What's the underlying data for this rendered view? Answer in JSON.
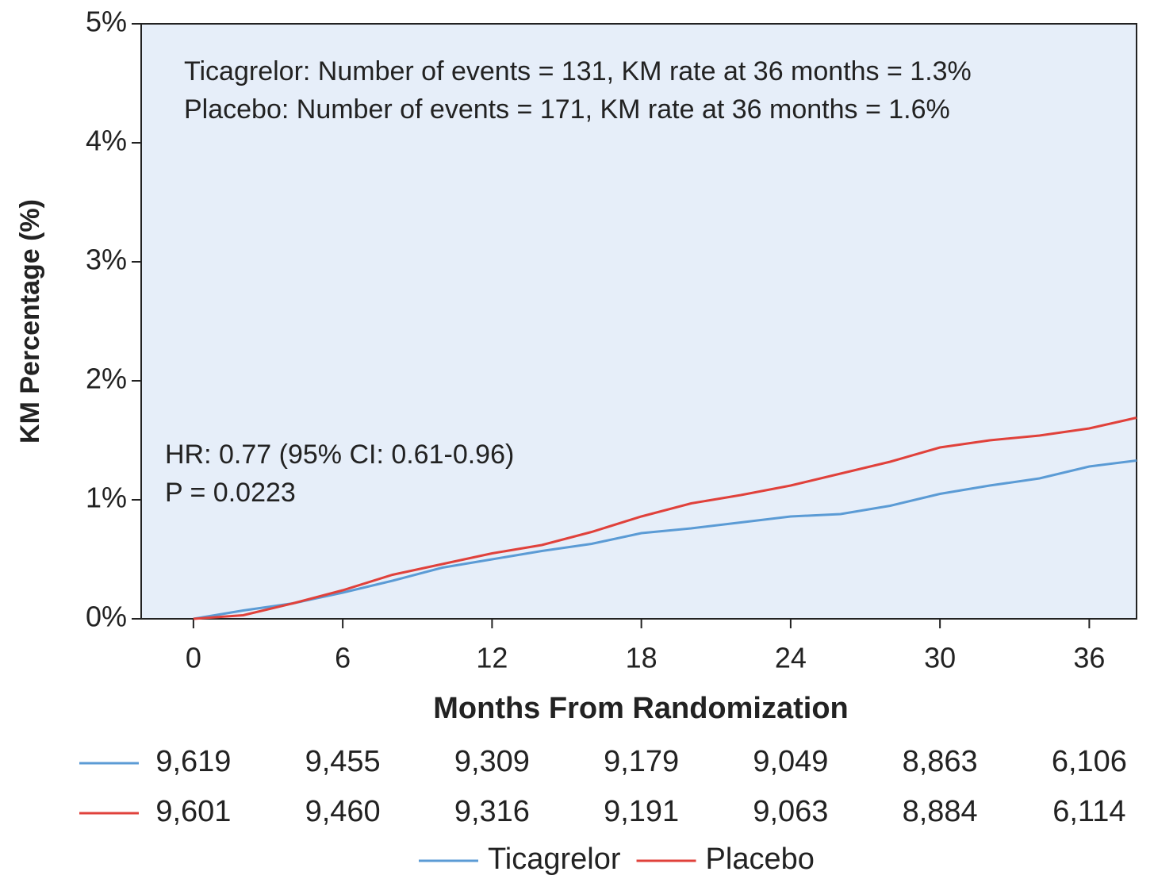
{
  "chart_data": {
    "type": "line",
    "y_label": "KM Percentage (%)",
    "x_label": "Months From Randomization",
    "annotations": [
      "Ticagrelor: Number of events = 131, KM rate at 36 months = 1.3%",
      "Placebo: Number of events = 171, KM rate at 36 months = 1.6%",
      "HR: 0.77 (95% CI: 0.61-0.96)",
      "P = 0.0223"
    ],
    "x": [
      0,
      2,
      4,
      6,
      8,
      10,
      12,
      14,
      16,
      18,
      20,
      22,
      24,
      26,
      28,
      30,
      32,
      34,
      36,
      37.9
    ],
    "series": [
      {
        "name": "Ticagrelor",
        "color": "#5b9bd5",
        "values": [
          0,
          0.07,
          0.13,
          0.22,
          0.32,
          0.43,
          0.5,
          0.57,
          0.63,
          0.72,
          0.76,
          0.81,
          0.86,
          0.88,
          0.95,
          1.05,
          1.12,
          1.18,
          1.28,
          1.33
        ]
      },
      {
        "name": "Placebo",
        "color": "#e0413b",
        "values": [
          0,
          0.03,
          0.13,
          0.24,
          0.37,
          0.46,
          0.55,
          0.62,
          0.73,
          0.86,
          0.97,
          1.04,
          1.12,
          1.22,
          1.32,
          1.44,
          1.5,
          1.54,
          1.6,
          1.69
        ]
      }
    ],
    "xlim": [
      -2.1,
      37.9
    ],
    "xticks": [
      0,
      6,
      12,
      18,
      24,
      30,
      36
    ],
    "ylim": [
      0,
      5
    ],
    "yticks": [
      {
        "value": 0,
        "label": "0%"
      },
      {
        "value": 1,
        "label": "1%"
      },
      {
        "value": 2,
        "label": "2%"
      },
      {
        "value": 3,
        "label": "3%"
      },
      {
        "value": 4,
        "label": "4%"
      },
      {
        "value": 5,
        "label": "5%"
      }
    ],
    "background": "#e6eef9",
    "at_risk": [
      {
        "color": "#5b9bd5",
        "values": [
          9619,
          9455,
          9309,
          9179,
          9049,
          8863,
          6106
        ],
        "value_labels": [
          "9,619",
          "9,455",
          "9,309",
          "9,179",
          "9,049",
          "8,863",
          "6,106"
        ]
      },
      {
        "color": "#e0413b",
        "values": [
          9601,
          9460,
          9316,
          9191,
          9063,
          8884,
          6114
        ],
        "value_labels": [
          "9,601",
          "9,460",
          "9,316",
          "9,191",
          "9,063",
          "8,884",
          "6,114"
        ]
      }
    ]
  }
}
